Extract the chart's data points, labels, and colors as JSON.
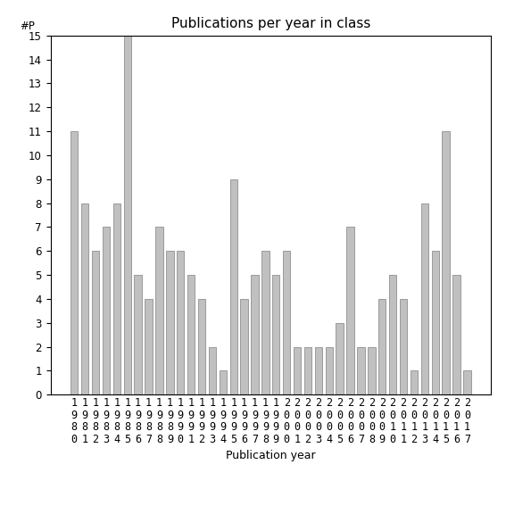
{
  "title": "Publications per year in class",
  "xlabel": "Publication year",
  "ylabel": "#P",
  "years": [
    1980,
    1981,
    1982,
    1983,
    1984,
    1985,
    1986,
    1987,
    1988,
    1989,
    1990,
    1991,
    1992,
    1993,
    1994,
    1995,
    1996,
    1997,
    1998,
    1999,
    2000,
    2001,
    2002,
    2003,
    2004,
    2005,
    2006,
    2007,
    2008,
    2009,
    2010,
    2011,
    2012,
    2013,
    2014,
    2015,
    2016,
    2017
  ],
  "values": [
    11,
    8,
    6,
    7,
    8,
    15,
    5,
    4,
    7,
    6,
    6,
    5,
    4,
    2,
    1,
    9,
    4,
    5,
    6,
    5,
    6,
    2,
    2,
    2,
    2,
    3,
    7,
    2,
    2,
    4,
    5,
    4,
    1,
    8,
    6,
    11,
    5,
    1
  ],
  "bar_color": "#c0c0c0",
  "bar_edge_color": "#808080",
  "ylim": [
    0,
    15
  ],
  "yticks": [
    0,
    1,
    2,
    3,
    4,
    5,
    6,
    7,
    8,
    9,
    10,
    11,
    12,
    13,
    14,
    15
  ],
  "background_color": "#ffffff",
  "title_fontsize": 11,
  "label_fontsize": 9,
  "tick_fontsize": 8.5
}
